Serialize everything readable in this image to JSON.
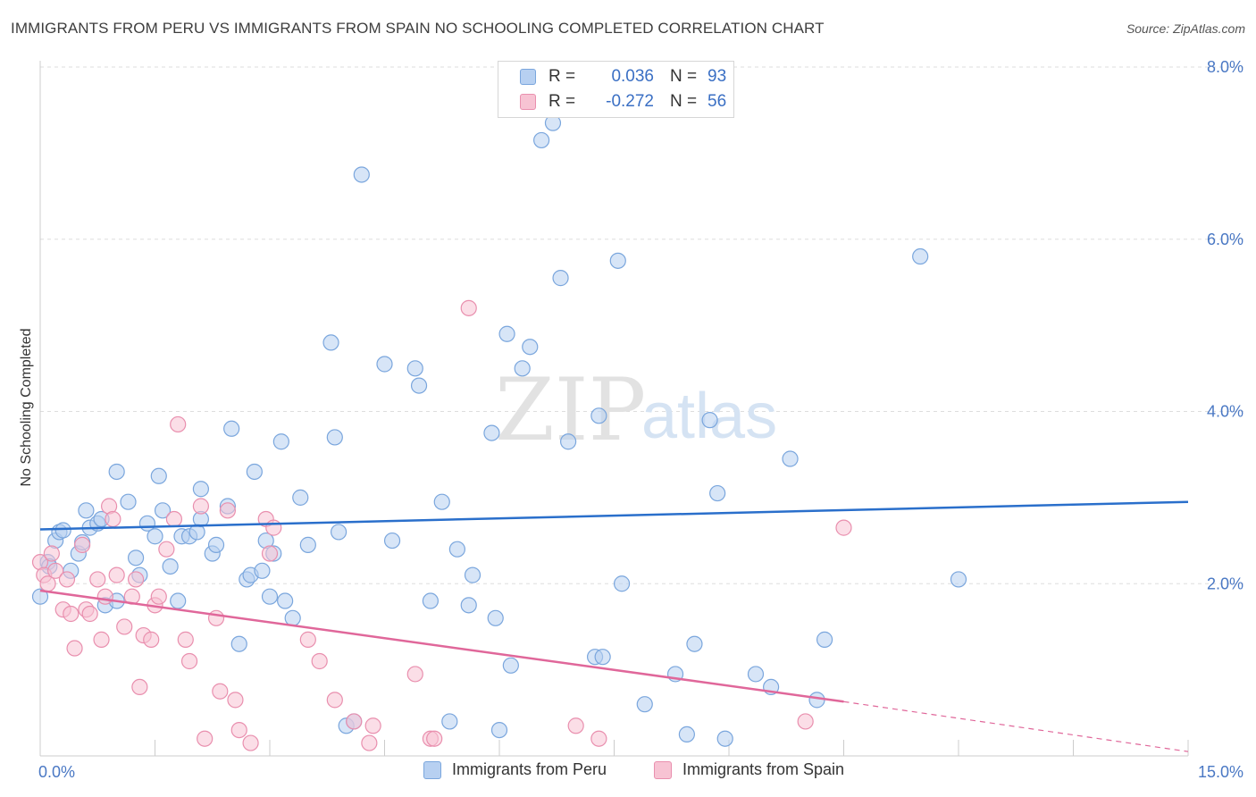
{
  "title": "IMMIGRANTS FROM PERU VS IMMIGRANTS FROM SPAIN NO SCHOOLING COMPLETED CORRELATION CHART",
  "source": "Source: ZipAtlas.com",
  "watermark": {
    "part1": "ZIP",
    "part2": "atlas"
  },
  "legend": {
    "rows": [
      {
        "r_label": "R =",
        "r_value": "0.036",
        "n_label": "N =",
        "n_value": "93"
      },
      {
        "r_label": "R =",
        "r_value": "-0.272",
        "n_label": "N =",
        "n_value": "56"
      }
    ]
  },
  "colors": {
    "peru_fill": "#b7d0f1",
    "peru_stroke": "#7aa6dd",
    "peru_line": "#2a6fcb",
    "spain_fill": "#f7c3d3",
    "spain_stroke": "#e98fae",
    "spain_line": "#e0679a",
    "grid": "#dddddd",
    "axis_text": "#4a78c4"
  },
  "chart_data": {
    "type": "scatter",
    "title": "IMMIGRANTS FROM PERU VS IMMIGRANTS FROM SPAIN NO SCHOOLING COMPLETED CORRELATION CHART",
    "xlabel": "",
    "ylabel": "No Schooling Completed",
    "xlim": [
      0,
      15
    ],
    "ylim": [
      0,
      8
    ],
    "x_tick_labels": [
      "0.0%",
      "15.0%"
    ],
    "y_ticks": [
      2,
      4,
      6,
      8
    ],
    "y_tick_labels": [
      "2.0%",
      "4.0%",
      "6.0%",
      "8.0%"
    ],
    "grid": true,
    "legend_position": "top-center",
    "series": [
      {
        "name": "Immigrants from Peru",
        "R": 0.036,
        "N": 93,
        "trend": {
          "x": [
            0,
            15
          ],
          "y": [
            2.63,
            2.95
          ]
        },
        "points": [
          [
            0.0,
            1.85
          ],
          [
            0.1,
            2.25
          ],
          [
            0.12,
            2.2
          ],
          [
            0.2,
            2.5
          ],
          [
            0.25,
            2.6
          ],
          [
            0.3,
            2.62
          ],
          [
            0.4,
            2.15
          ],
          [
            0.5,
            2.35
          ],
          [
            0.55,
            2.48
          ],
          [
            0.6,
            2.85
          ],
          [
            0.65,
            2.65
          ],
          [
            0.75,
            2.7
          ],
          [
            0.8,
            2.75
          ],
          [
            0.85,
            1.75
          ],
          [
            1.0,
            1.8
          ],
          [
            1.0,
            3.3
          ],
          [
            1.15,
            2.95
          ],
          [
            1.25,
            2.3
          ],
          [
            1.3,
            2.1
          ],
          [
            1.4,
            2.7
          ],
          [
            1.5,
            2.55
          ],
          [
            1.55,
            3.25
          ],
          [
            1.6,
            2.85
          ],
          [
            1.7,
            2.2
          ],
          [
            1.8,
            1.8
          ],
          [
            1.85,
            2.55
          ],
          [
            1.95,
            2.55
          ],
          [
            2.05,
            2.6
          ],
          [
            2.1,
            2.75
          ],
          [
            2.1,
            3.1
          ],
          [
            2.25,
            2.35
          ],
          [
            2.3,
            2.45
          ],
          [
            2.45,
            2.9
          ],
          [
            2.5,
            3.8
          ],
          [
            2.6,
            1.3
          ],
          [
            2.7,
            2.05
          ],
          [
            2.75,
            2.1
          ],
          [
            2.8,
            3.3
          ],
          [
            2.9,
            2.15
          ],
          [
            2.95,
            2.5
          ],
          [
            3.0,
            1.85
          ],
          [
            3.05,
            2.35
          ],
          [
            3.15,
            3.65
          ],
          [
            3.2,
            1.8
          ],
          [
            3.3,
            1.6
          ],
          [
            3.4,
            3.0
          ],
          [
            3.5,
            2.45
          ],
          [
            3.8,
            4.8
          ],
          [
            3.85,
            3.7
          ],
          [
            3.9,
            2.6
          ],
          [
            4.0,
            0.35
          ],
          [
            4.1,
            0.4
          ],
          [
            4.2,
            6.75
          ],
          [
            4.5,
            4.55
          ],
          [
            4.6,
            2.5
          ],
          [
            4.9,
            4.5
          ],
          [
            4.95,
            4.3
          ],
          [
            5.1,
            1.8
          ],
          [
            5.25,
            2.95
          ],
          [
            5.35,
            0.4
          ],
          [
            5.45,
            2.4
          ],
          [
            5.6,
            1.75
          ],
          [
            5.65,
            2.1
          ],
          [
            5.9,
            3.75
          ],
          [
            5.95,
            1.6
          ],
          [
            6.0,
            0.3
          ],
          [
            6.1,
            4.9
          ],
          [
            6.15,
            1.05
          ],
          [
            6.3,
            4.5
          ],
          [
            6.4,
            4.75
          ],
          [
            6.55,
            7.15
          ],
          [
            6.7,
            7.35
          ],
          [
            6.8,
            5.55
          ],
          [
            6.9,
            3.65
          ],
          [
            7.25,
            1.15
          ],
          [
            7.3,
            3.95
          ],
          [
            7.35,
            1.15
          ],
          [
            7.55,
            5.75
          ],
          [
            7.6,
            2.0
          ],
          [
            7.9,
            0.6
          ],
          [
            8.3,
            0.95
          ],
          [
            8.45,
            0.25
          ],
          [
            8.55,
            1.3
          ],
          [
            8.75,
            3.9
          ],
          [
            8.85,
            3.05
          ],
          [
            8.95,
            0.2
          ],
          [
            9.35,
            0.95
          ],
          [
            9.55,
            0.8
          ],
          [
            9.8,
            3.45
          ],
          [
            10.15,
            0.65
          ],
          [
            10.25,
            1.35
          ],
          [
            11.5,
            5.8
          ],
          [
            12.0,
            2.05
          ]
        ]
      },
      {
        "name": "Immigrants from Spain",
        "R": -0.272,
        "N": 56,
        "trend": {
          "x": [
            0,
            10.5
          ],
          "y": [
            1.92,
            0.63
          ]
        },
        "trend_extension": {
          "x": [
            10.5,
            15
          ],
          "y": [
            0.63,
            0.05
          ]
        },
        "points": [
          [
            0.0,
            2.25
          ],
          [
            0.05,
            2.1
          ],
          [
            0.1,
            2.0
          ],
          [
            0.15,
            2.35
          ],
          [
            0.2,
            2.15
          ],
          [
            0.3,
            1.7
          ],
          [
            0.35,
            2.05
          ],
          [
            0.4,
            1.65
          ],
          [
            0.45,
            1.25
          ],
          [
            0.55,
            2.45
          ],
          [
            0.6,
            1.7
          ],
          [
            0.65,
            1.65
          ],
          [
            0.75,
            2.05
          ],
          [
            0.8,
            1.35
          ],
          [
            0.85,
            1.85
          ],
          [
            0.9,
            2.9
          ],
          [
            0.95,
            2.75
          ],
          [
            1.0,
            2.1
          ],
          [
            1.1,
            1.5
          ],
          [
            1.2,
            1.85
          ],
          [
            1.25,
            2.05
          ],
          [
            1.3,
            0.8
          ],
          [
            1.35,
            1.4
          ],
          [
            1.45,
            1.35
          ],
          [
            1.5,
            1.75
          ],
          [
            1.55,
            1.85
          ],
          [
            1.65,
            2.4
          ],
          [
            1.75,
            2.75
          ],
          [
            1.8,
            3.85
          ],
          [
            1.9,
            1.35
          ],
          [
            1.95,
            1.1
          ],
          [
            2.1,
            2.9
          ],
          [
            2.15,
            0.2
          ],
          [
            2.3,
            1.6
          ],
          [
            2.35,
            0.75
          ],
          [
            2.45,
            2.85
          ],
          [
            2.55,
            0.65
          ],
          [
            2.6,
            0.3
          ],
          [
            2.75,
            0.15
          ],
          [
            2.95,
            2.75
          ],
          [
            3.0,
            2.35
          ],
          [
            3.05,
            2.65
          ],
          [
            3.5,
            1.35
          ],
          [
            3.65,
            1.1
          ],
          [
            3.85,
            0.65
          ],
          [
            4.1,
            0.4
          ],
          [
            4.3,
            0.15
          ],
          [
            4.35,
            0.35
          ],
          [
            4.9,
            0.95
          ],
          [
            5.1,
            0.2
          ],
          [
            5.15,
            0.2
          ],
          [
            5.6,
            5.2
          ],
          [
            7.0,
            0.35
          ],
          [
            7.3,
            0.2
          ],
          [
            10.0,
            0.4
          ],
          [
            10.5,
            2.65
          ]
        ]
      }
    ]
  },
  "bottom_legend": {
    "peru": "Immigrants from Peru",
    "spain": "Immigrants from Spain"
  }
}
